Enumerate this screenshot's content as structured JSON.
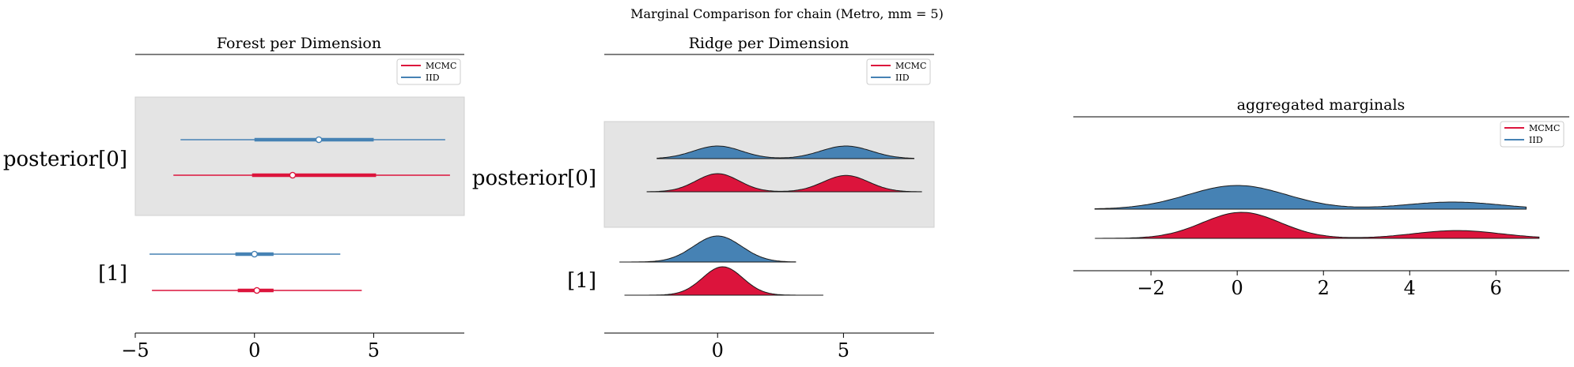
{
  "suptitle": "Marginal Comparison for chain (Metro, mm = 5)",
  "colors": {
    "mcmc": "#dc143c",
    "iid": "#4682b4",
    "band": "#e4e4e4",
    "axis": "#000000"
  },
  "chart_data": [
    {
      "type": "forest",
      "title": "Forest per Dimension",
      "legend": {
        "placement": "top-right",
        "entries": [
          "MCMC",
          "IID"
        ]
      },
      "xlim": [
        -5,
        8.8
      ],
      "xticks": [
        -5,
        0,
        5
      ],
      "xtick_labels": [
        "−5",
        "0",
        "5"
      ],
      "rows": [
        "posterior[0]",
        "[1]"
      ],
      "shaded_rows": [
        "posterior[0]"
      ],
      "series": [
        {
          "name": "IID",
          "dims": [
            {
              "label": "posterior[0]",
              "hdi": [
                -3.1,
                8.0
              ],
              "iqr": [
                0.0,
                5.0
              ],
              "median": 2.7
            },
            {
              "label": "[1]",
              "hdi": [
                -4.4,
                3.6
              ],
              "iqr": [
                -0.8,
                0.8
              ],
              "median": 0.0
            }
          ]
        },
        {
          "name": "MCMC",
          "dims": [
            {
              "label": "posterior[0]",
              "hdi": [
                -3.4,
                8.2
              ],
              "iqr": [
                -0.1,
                5.1
              ],
              "median": 1.6
            },
            {
              "label": "[1]",
              "hdi": [
                -4.3,
                4.5
              ],
              "iqr": [
                -0.7,
                0.8
              ],
              "median": 0.1
            }
          ]
        }
      ]
    },
    {
      "type": "ridge",
      "title": "Ridge per Dimension",
      "legend": {
        "placement": "top-right",
        "entries": [
          "MCMC",
          "IID"
        ]
      },
      "xlim": [
        -4.5,
        8.6
      ],
      "xticks": [
        0,
        5
      ],
      "xtick_labels": [
        "0",
        "5"
      ],
      "rows": [
        "posterior[0]",
        "[1]"
      ],
      "shaded_rows": [
        "posterior[0]"
      ],
      "series": [
        {
          "name": "IID",
          "dims": [
            {
              "label": "posterior[0]",
              "range": [
                -2.4,
                7.8
              ],
              "modes": [
                [
                  0.0,
                  0.95,
                  1.0
                ],
                [
                  5.1,
                  1.0,
                  1.0
                ]
              ]
            },
            {
              "label": "[1]",
              "range": [
                -3.9,
                3.1
              ],
              "modes": [
                [
                  0.0,
                  0.95,
                  1.0
                ]
              ]
            }
          ]
        },
        {
          "name": "MCMC",
          "dims": [
            {
              "label": "posterior[0]",
              "range": [
                -2.8,
                8.1
              ],
              "modes": [
                [
                  0.0,
                  0.85,
                  1.0
                ],
                [
                  5.1,
                  0.9,
                  0.9
                ]
              ]
            },
            {
              "label": "[1]",
              "range": [
                -3.7,
                4.2
              ],
              "modes": [
                [
                  0.2,
                  0.8,
                  0.85
                ]
              ]
            }
          ]
        }
      ]
    },
    {
      "type": "ridge",
      "title": "aggregated marginals",
      "legend": {
        "placement": "top-right",
        "entries": [
          "MCMC",
          "IID"
        ]
      },
      "xlim": [
        -3.8,
        7.7
      ],
      "xticks": [
        -2,
        0,
        2,
        4,
        6
      ],
      "xtick_labels": [
        "−2",
        "0",
        "2",
        "4",
        "6"
      ],
      "series": [
        {
          "name": "IID",
          "range": [
            -3.3,
            6.7
          ],
          "modes": [
            [
              0.0,
              1.15,
              1.0
            ],
            [
              5.0,
              1.1,
              0.3
            ]
          ]
        },
        {
          "name": "MCMC",
          "range": [
            -3.3,
            7.0
          ],
          "modes": [
            [
              0.1,
              0.9,
              1.0
            ],
            [
              5.1,
              1.0,
              0.3
            ]
          ]
        }
      ]
    }
  ]
}
